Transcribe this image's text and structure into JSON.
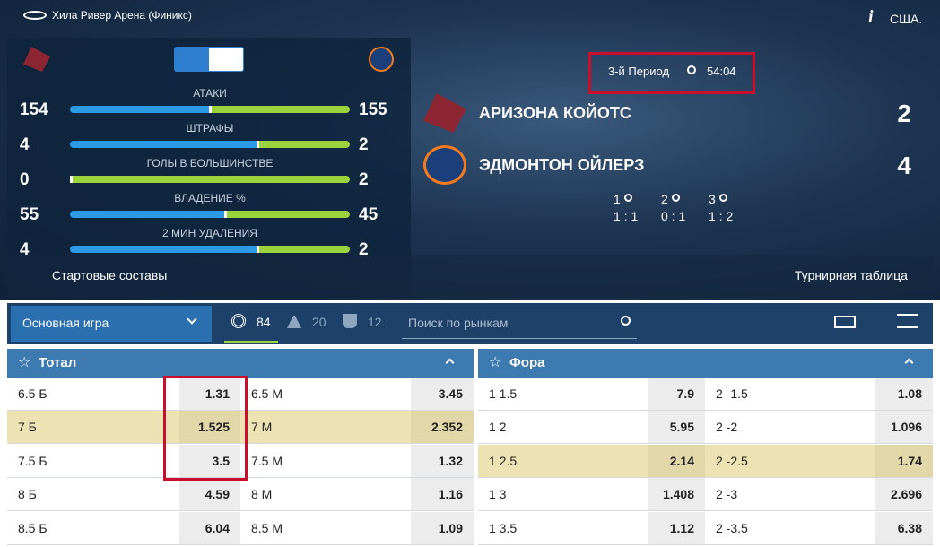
{
  "header": {
    "venue": "Хила Ривер Арена (Финикс)",
    "region": "США."
  },
  "stats": [
    {
      "label": "АТАКИ",
      "home": 154,
      "away": 155
    },
    {
      "label": "ШТРАФЫ",
      "home": 4,
      "away": 2
    },
    {
      "label": "ГОЛЫ В БОЛЬШИНСТВЕ",
      "home": 0,
      "away": 2
    },
    {
      "label": "ВЛАДЕНИЕ %",
      "home": 55,
      "away": 45
    },
    {
      "label": "2 МИН УДАЛЕНИЯ",
      "home": 4,
      "away": 2
    }
  ],
  "links": {
    "lineups": "Стартовые составы",
    "standings": "Турнирная таблица"
  },
  "match": {
    "period": "3-й Период",
    "time": "54:04",
    "teams": [
      {
        "name": "АРИЗОНА КОЙОТС",
        "score": 2
      },
      {
        "name": "ЭДМОНТОН ОЙЛЕРЗ",
        "score": 4
      }
    ],
    "periods": [
      {
        "label": "1",
        "score": "1 : 1"
      },
      {
        "label": "2",
        "score": "0 : 1"
      },
      {
        "label": "3",
        "score": "1 : 2"
      }
    ]
  },
  "toolbar": {
    "dropdown": "Основная игра",
    "counts": [
      84,
      20,
      12
    ],
    "search": "Поиск по рынкам"
  },
  "markets": [
    {
      "title": "Тотал",
      "highlight": 1,
      "rows": [
        [
          "6.5 Б",
          "1.31",
          "6.5 М",
          "3.45"
        ],
        [
          "7 Б",
          "1.525",
          "7 М",
          "2.352"
        ],
        [
          "7.5 Б",
          "3.5",
          "7.5 М",
          "1.32"
        ],
        [
          "8 Б",
          "4.59",
          "8 М",
          "1.16"
        ],
        [
          "8.5 Б",
          "6.04",
          "8.5 М",
          "1.09"
        ]
      ]
    },
    {
      "title": "Фора",
      "highlight": 2,
      "rows": [
        [
          "1 1.5",
          "7.9",
          "2 -1.5",
          "1.08"
        ],
        [
          "1 2",
          "5.95",
          "2 -2",
          "1.096"
        ],
        [
          "1 2.5",
          "2.14",
          "2 -2.5",
          "1.74"
        ],
        [
          "1 3",
          "1.408",
          "2 -3",
          "2.696"
        ],
        [
          "1 3.5",
          "1.12",
          "2 -3.5",
          "6.38"
        ]
      ]
    }
  ]
}
